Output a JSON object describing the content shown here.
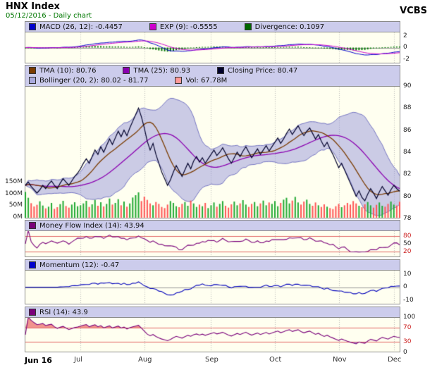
{
  "header": {
    "title": "HNX Index",
    "subtitle": "05/12/2016 - Daily chart",
    "brand": "VCBS"
  },
  "panels": {
    "macd": {
      "legend": [
        {
          "label": "MACD (26, 12): -0.4457",
          "color": "#0000cc"
        },
        {
          "label": "EXP (9): -0.5555",
          "color": "#cc00cc"
        },
        {
          "label": "Divergence: 0.1097",
          "color": "#006600"
        }
      ],
      "yticks": [
        "2",
        "0",
        "-2"
      ]
    },
    "main": {
      "legend_row1": [
        {
          "label": "TMA (10): 80.76",
          "color": "#7a3b00"
        },
        {
          "label": "TMA (25): 80.93",
          "color": "#8a00b0"
        },
        {
          "label": "Closing Price: 80.47",
          "color": "#00002a"
        }
      ],
      "legend_row2": [
        {
          "label": "Bollinger (20, 2): 80.02 - 81.77",
          "color": "#aaaadd"
        },
        {
          "label": "Vol: 67.78M",
          "color": "#ff9999"
        }
      ],
      "yticks": [
        "90",
        "88",
        "86",
        "84",
        "82",
        "80",
        "78"
      ],
      "vol_ticks": [
        "150M",
        "100M",
        "50M",
        "0M"
      ]
    },
    "mfi": {
      "legend": [
        {
          "label": "Money Flow Index (14): 43.94",
          "color": "#7a007a"
        }
      ],
      "yticks": [
        "80",
        "50",
        "20"
      ]
    },
    "momentum": {
      "legend": [
        {
          "label": "Momentum (12): -0.47",
          "color": "#0000cc"
        }
      ],
      "yticks": [
        "10",
        "0",
        "-10"
      ]
    },
    "rsi": {
      "legend": [
        {
          "label": "RSI (14): 43.9",
          "color": "#7a007a"
        }
      ],
      "yticks": [
        "100",
        "70",
        "30",
        "0"
      ]
    }
  },
  "chart_data": {
    "type": "line",
    "title": "HNX Index - Daily chart",
    "date": "05/12/2016",
    "ylim_price": [
      78,
      90
    ],
    "ylim_macd": [
      -2.8,
      2.8
    ],
    "ylim_mfi": [
      0,
      100
    ],
    "ylim_momentum": [
      -13,
      13
    ],
    "ylim_rsi": [
      0,
      100
    ],
    "vol_axis_max_m": 150,
    "months": [
      {
        "label": "Jun 16",
        "i": 0
      },
      {
        "label": "Jul",
        "i": 19
      },
      {
        "label": "Aug",
        "i": 41
      },
      {
        "label": "Sep",
        "i": 64
      },
      {
        "label": "Oct",
        "i": 86
      },
      {
        "label": "Nov",
        "i": 108
      },
      {
        "label": "Dec",
        "i": 127
      }
    ],
    "indicators": {
      "macd": {
        "params": "26, 12",
        "value": -0.4457
      },
      "exp": {
        "params": "9",
        "value": -0.5555
      },
      "divergence": 0.1097,
      "tma10": 80.76,
      "tma25": 80.93,
      "closing_price": 80.47,
      "bollinger": {
        "params": "20, 2",
        "lower": 80.02,
        "upper": 81.77
      },
      "volume": "67.78M",
      "mfi14": 43.94,
      "momentum12": -0.47,
      "rsi14": 43.9
    },
    "close": [
      81.0,
      81.3,
      80.9,
      80.6,
      80.3,
      80.6,
      81.0,
      80.7,
      81.1,
      81.4,
      81.0,
      80.7,
      81.2,
      81.6,
      81.3,
      81.0,
      81.4,
      81.8,
      82.1,
      82.5,
      83.0,
      83.4,
      83.0,
      83.6,
      84.2,
      83.8,
      84.5,
      84.0,
      84.6,
      85.2,
      84.7,
      85.3,
      85.9,
      85.4,
      86.0,
      85.5,
      86.2,
      86.8,
      87.4,
      88.0,
      87.2,
      86.2,
      85.0,
      84.2,
      84.8,
      83.8,
      83.0,
      82.2,
      81.6,
      81.0,
      81.5,
      82.2,
      82.8,
      82.3,
      81.8,
      82.4,
      83.0,
      82.5,
      83.2,
      83.6,
      83.1,
      83.5,
      83.0,
      83.4,
      83.8,
      84.2,
      83.7,
      84.0,
      84.4,
      83.9,
      83.4,
      83.0,
      83.5,
      84.0,
      83.6,
      84.1,
      84.5,
      84.0,
      83.5,
      83.9,
      84.3,
      83.8,
      84.2,
      84.6,
      84.1,
      84.5,
      84.9,
      85.3,
      84.8,
      85.2,
      85.7,
      86.1,
      85.6,
      86.0,
      86.4,
      85.9,
      85.5,
      85.9,
      86.2,
      85.7,
      85.2,
      85.6,
      85.0,
      84.5,
      84.9,
      84.3,
      83.8,
      83.2,
      82.6,
      83.0,
      82.4,
      81.8,
      81.2,
      80.6,
      80.0,
      80.5,
      79.9,
      79.6,
      80.2,
      80.7,
      80.3,
      79.8,
      80.4,
      80.9,
      80.5,
      80.1,
      80.6,
      81.0,
      80.7,
      80.47
    ],
    "volume_m": [
      110,
      85,
      62,
      48,
      55,
      70,
      52,
      40,
      47,
      63,
      38,
      45,
      58,
      72,
      50,
      43,
      56,
      66,
      49,
      53,
      61,
      72,
      46,
      57,
      76,
      51,
      66,
      48,
      59,
      82,
      56,
      63,
      79,
      53,
      69,
      47,
      61,
      86,
      96,
      108,
      71,
      90,
      76,
      61,
      53,
      67,
      59,
      46,
      41,
      56,
      71,
      63,
      49,
      45,
      59,
      67,
      51,
      73,
      61,
      46,
      56,
      49,
      63,
      41,
      53,
      65,
      47,
      59,
      71,
      51,
      43,
      57,
      69,
      53,
      61,
      75,
      56,
      46,
      59,
      67,
      49,
      61,
      73,
      53,
      65,
      59,
      71,
      49,
      63,
      77,
      85,
      61,
      73,
      89,
      65,
      56,
      69,
      77,
      59,
      51,
      65,
      53,
      46,
      57,
      47,
      41,
      37,
      49,
      59,
      45,
      53,
      63,
      56,
      71,
      61,
      51,
      45,
      57,
      67,
      53,
      43,
      55,
      65,
      51,
      47,
      59,
      69,
      56,
      52,
      67.78
    ]
  }
}
